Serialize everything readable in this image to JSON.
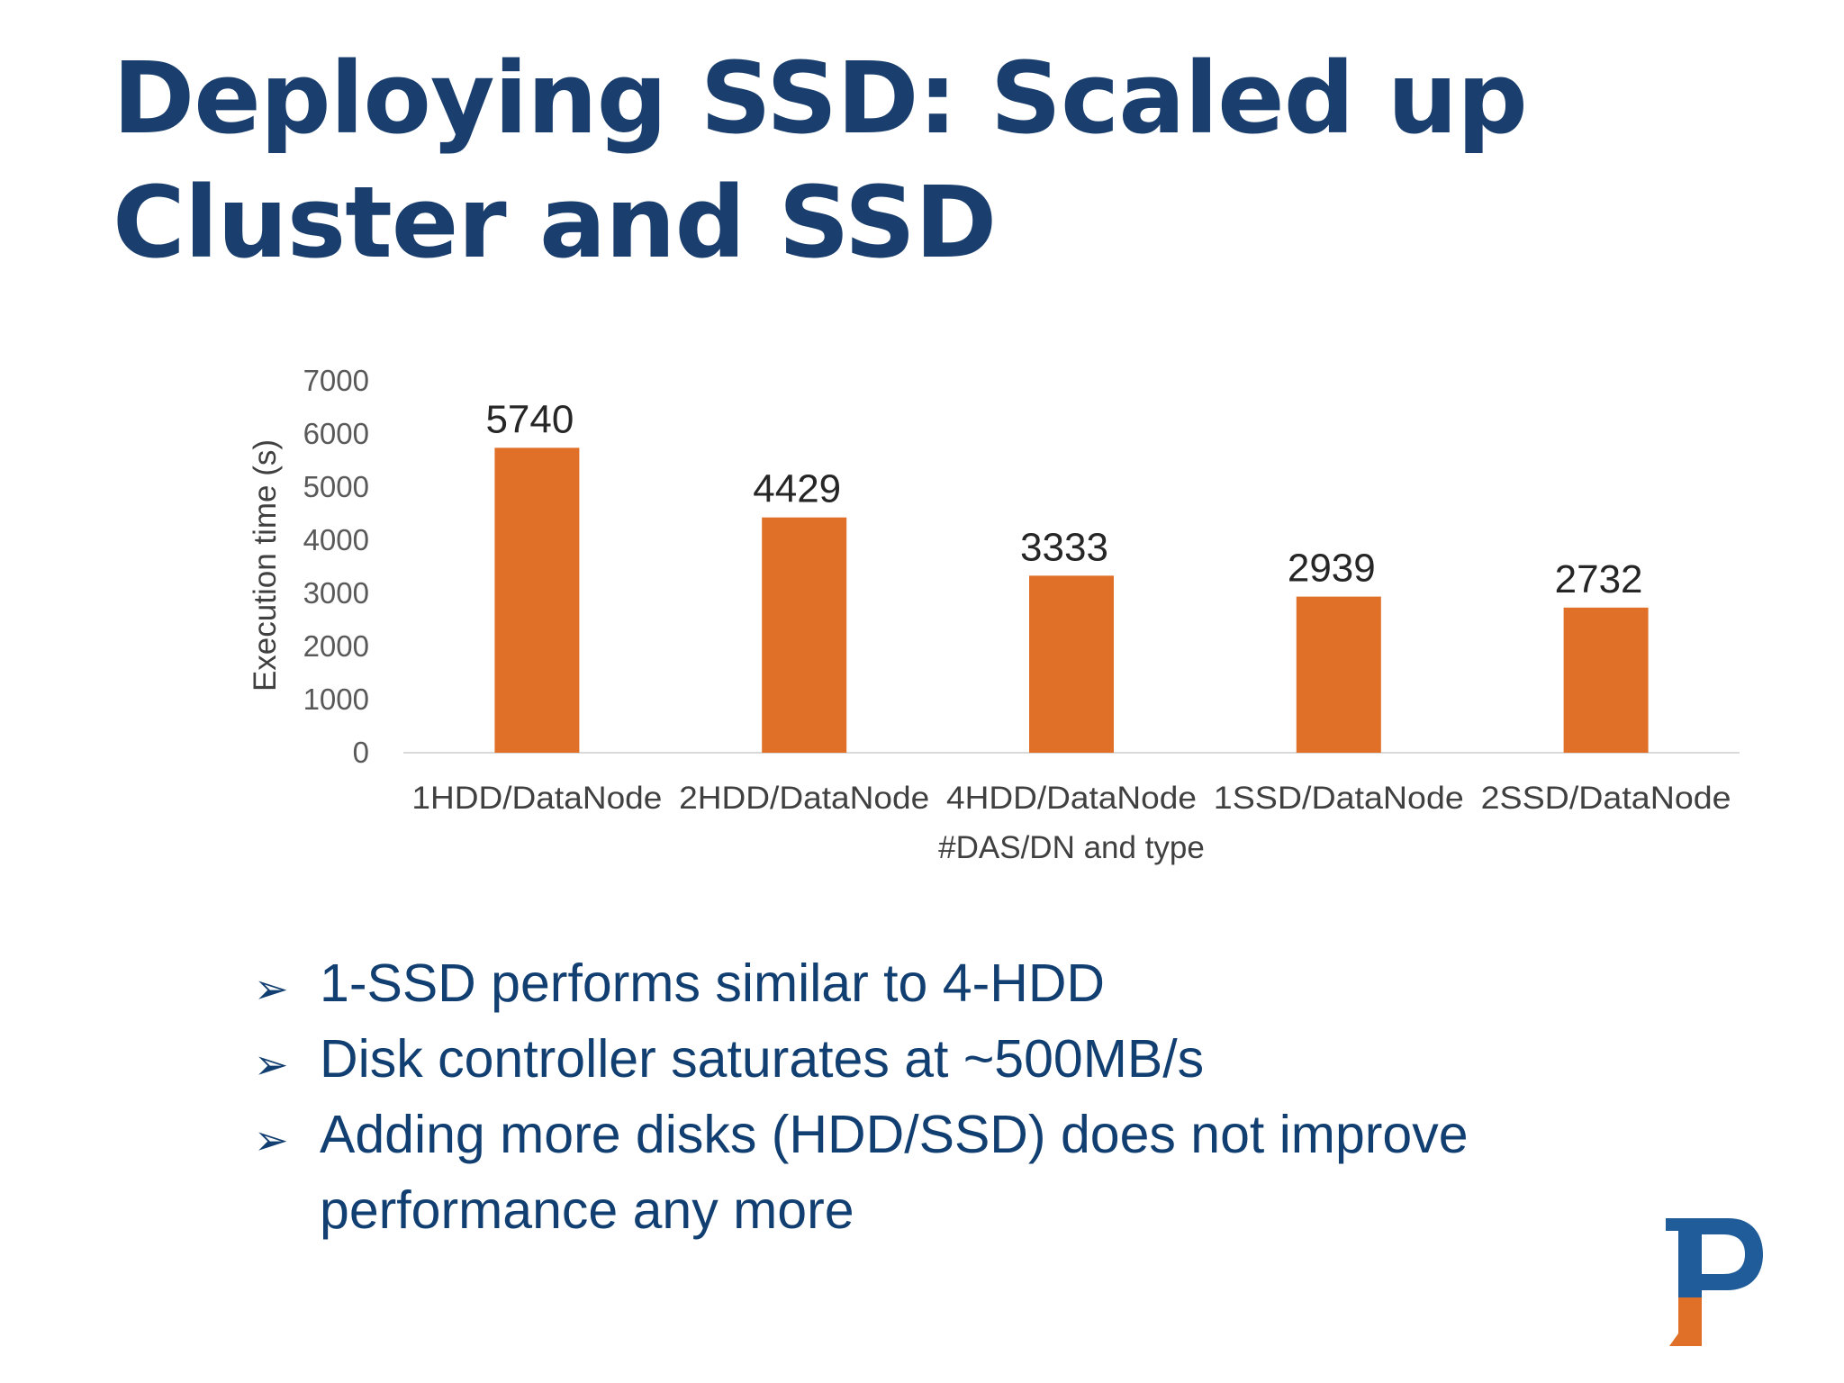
{
  "slide": {
    "title": "Deploying SSD: Scaled up Cluster and SSD"
  },
  "chart_data": {
    "type": "bar",
    "categories": [
      "1HDD/DataNode",
      "2HDD/DataNode",
      "4HDD/DataNode",
      "1SSD/DataNode",
      "2SSD/DataNode"
    ],
    "values": [
      5740,
      4429,
      3333,
      2939,
      2732
    ],
    "data_labels": [
      "5740",
      "4429",
      "3333",
      "2939",
      "2732"
    ],
    "title": "",
    "xlabel": "#DAS/DN and type",
    "ylabel": "Execution time (s)",
    "ylim": [
      0,
      7000
    ],
    "yticks": [
      0,
      1000,
      2000,
      3000,
      4000,
      5000,
      6000,
      7000
    ],
    "ytick_labels": [
      "0",
      "1000",
      "2000",
      "3000",
      "4000",
      "5000",
      "6000",
      "7000"
    ],
    "bar_color": "#e07028",
    "axis_line_color": "#d9d9d9",
    "grid": false,
    "legend": "none"
  },
  "bullets": [
    {
      "icon": "arrowhead-bullet-icon",
      "text": "1-SSD performs similar to 4-HDD"
    },
    {
      "icon": "arrowhead-bullet-icon",
      "text": "Disk controller saturates at ~500MB/s"
    },
    {
      "icon": "arrowhead-bullet-icon",
      "text": "Adding more disks (HDD/SSD) does not improve performance any more"
    }
  ],
  "colors": {
    "title": "#1a3f6e",
    "bullet_text": "#123f71",
    "logo_blue": "#1f5c99",
    "logo_orange": "#e07028"
  },
  "logo": {
    "icon": "institution-logo-icon"
  }
}
